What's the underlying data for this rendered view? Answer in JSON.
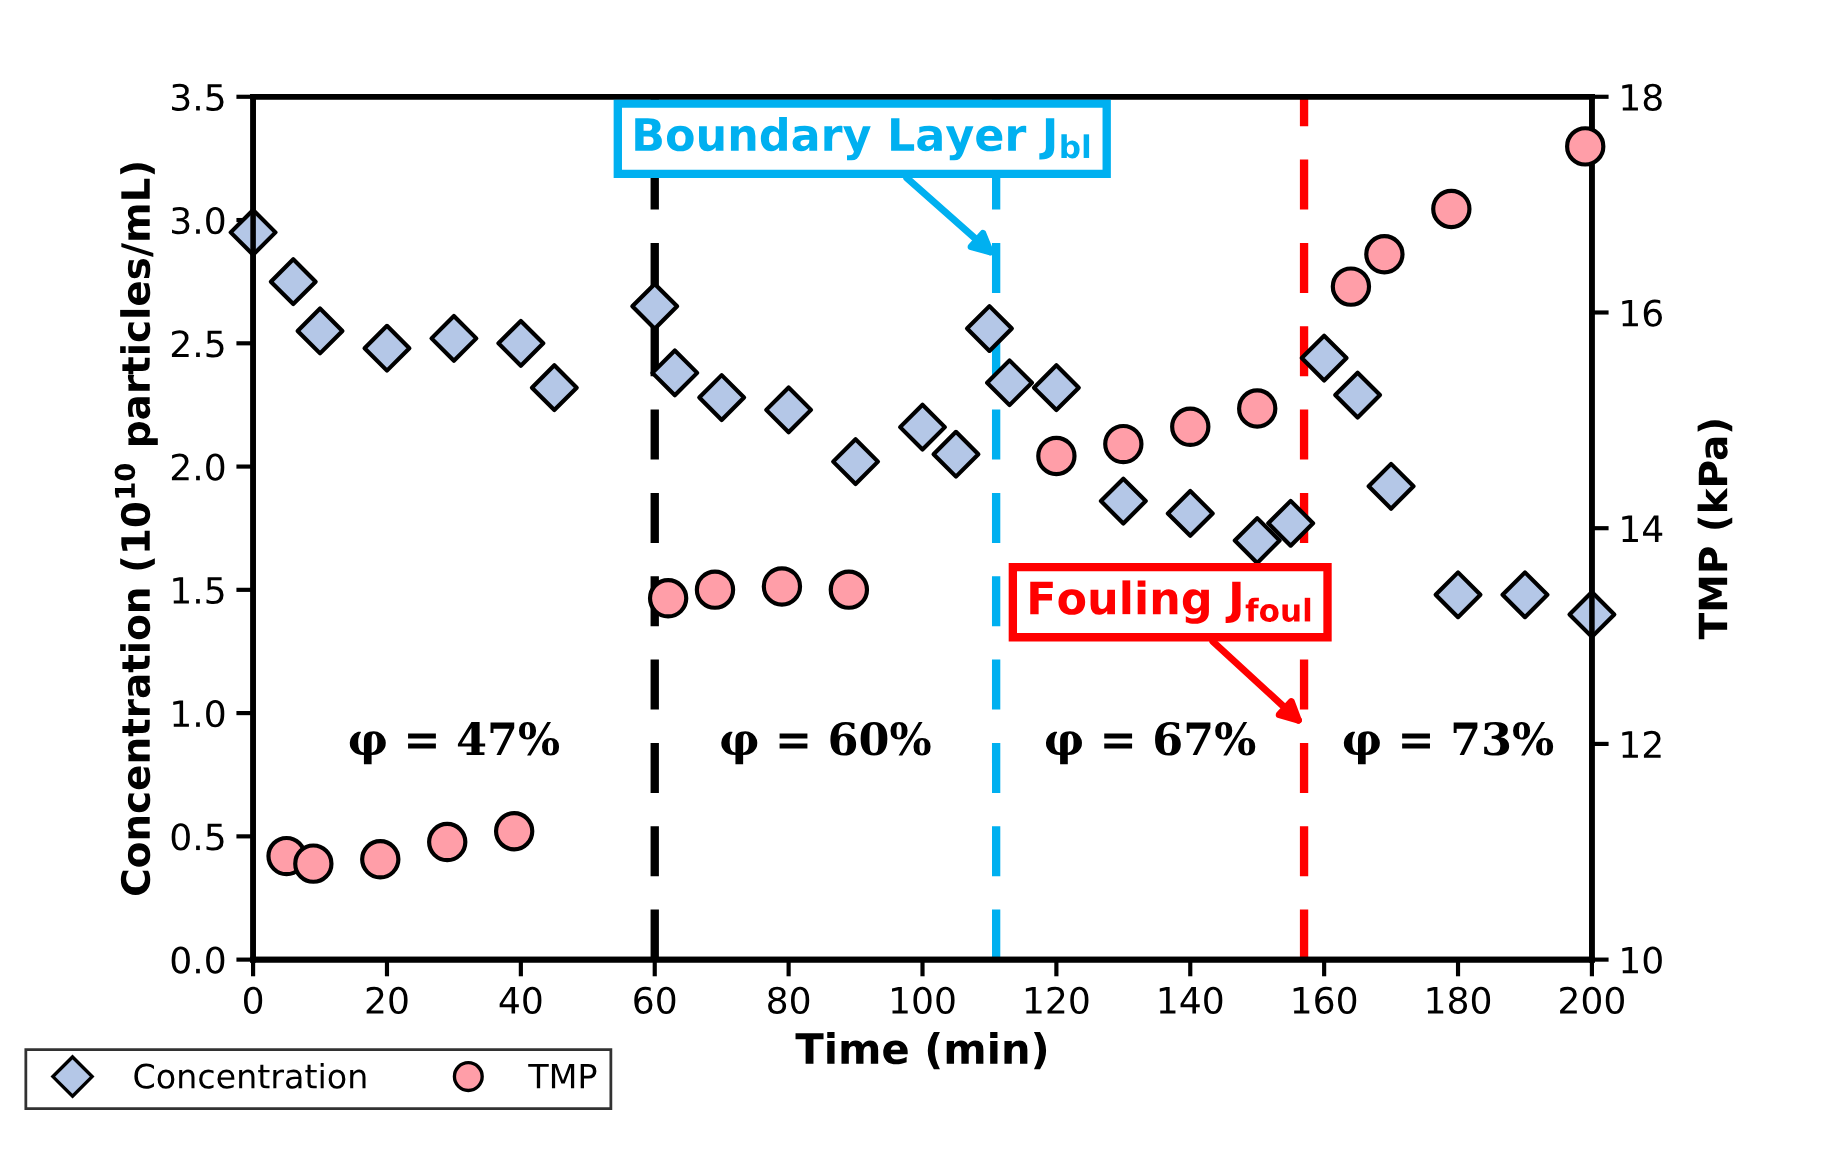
{
  "chart_data": {
    "type": "scatter",
    "xlabel": "Time (min)",
    "ylabel": "Concentration (10$^{10}$ particles/mL)",
    "y2label": "TMP (kPa)",
    "xlim": [
      0,
      200
    ],
    "xticks": [
      0,
      20,
      40,
      60,
      80,
      100,
      120,
      140,
      160,
      180,
      200
    ],
    "ylim": [
      0,
      3.5
    ],
    "yticks": [
      {
        "value": 0,
        "label": "0.0"
      },
      0.5,
      {
        "value": 1,
        "label": "1.0"
      },
      1.5,
      {
        "value": 2,
        "label": "2.0"
      },
      2.5,
      {
        "value": 3,
        "label": "3.0"
      },
      3.5
    ],
    "y2lim": [
      10,
      18
    ],
    "y2ticks": [
      10,
      12,
      14,
      16,
      18
    ],
    "grid": false,
    "legend": "bottom left",
    "series": [
      {
        "name": "Concentration",
        "color": "#b4c7e7",
        "marker": "diamond",
        "x": [
          0,
          6,
          10,
          20,
          30,
          40,
          45,
          60,
          63,
          70,
          80,
          90,
          100,
          105,
          110,
          113,
          120,
          130,
          140,
          150,
          155,
          160,
          165,
          170,
          180,
          190,
          200
        ],
        "values": [
          2.95,
          2.75,
          2.55,
          2.48,
          2.52,
          2.5,
          2.32,
          2.65,
          2.38,
          2.28,
          2.23,
          2.02,
          2.16,
          2.05,
          2.56,
          2.34,
          2.32,
          1.86,
          1.81,
          1.7,
          1.77,
          2.44,
          2.29,
          1.92,
          1.48,
          1.48,
          1.4
        ]
      },
      {
        "name": "TMP",
        "color": "#ff9ea8",
        "marker": "circle",
        "axis": "y2",
        "x": [
          5,
          9,
          19,
          29,
          39,
          62,
          69,
          79,
          89,
          120,
          130,
          140,
          150,
          164,
          169,
          179,
          199
        ],
        "values": [
          10.96,
          10.89,
          10.93,
          11.09,
          11.19,
          13.35,
          13.43,
          13.46,
          13.43,
          14.67,
          14.78,
          14.94,
          15.11,
          16.24,
          16.54,
          16.96,
          17.54
        ]
      }
    ],
    "ref_lines": [
      {
        "axis": "x",
        "value": 60,
        "color": "#000000",
        "line_style": "dashed"
      },
      {
        "axis": "x",
        "value": 111,
        "color": "#00b0f0",
        "line_style": "dashed",
        "label": "Boundary Layer J$_{bl}$"
      },
      {
        "axis": "x",
        "value": 157,
        "color": "#ff0000",
        "line_style": "dashed",
        "label": "Fouling J$_{foul}$"
      }
    ],
    "annotations": [
      "φ = 47%",
      "φ = 60%",
      "φ = 67%",
      "φ = 73%"
    ]
  }
}
